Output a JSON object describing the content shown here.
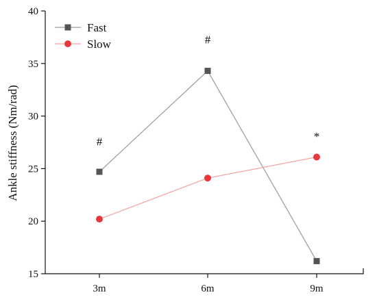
{
  "chart_data": {
    "type": "line",
    "title": "",
    "xlabel": "",
    "ylabel": "Ankle stiffness (Nm/rad)",
    "categories": [
      "3m",
      "6m",
      "9m"
    ],
    "ylim": [
      15,
      40
    ],
    "yticks": [
      15,
      20,
      25,
      30,
      35,
      40
    ],
    "grid": false,
    "legend_position": "top-left",
    "series": [
      {
        "name": "Fast",
        "values": [
          24.7,
          34.3,
          16.2
        ],
        "color": "#999999",
        "marker_color": "#555555",
        "marker": "square"
      },
      {
        "name": "Slow",
        "values": [
          20.2,
          24.1,
          26.1
        ],
        "color": "#f4a3a3",
        "marker_color": "#e8383d",
        "marker": "circle"
      }
    ],
    "annotations": [
      {
        "text": "#",
        "category": "3m",
        "y": 27.6
      },
      {
        "text": "#",
        "category": "6m",
        "y": 37.3
      },
      {
        "text": "*",
        "category": "9m",
        "y": 28.1
      }
    ]
  }
}
